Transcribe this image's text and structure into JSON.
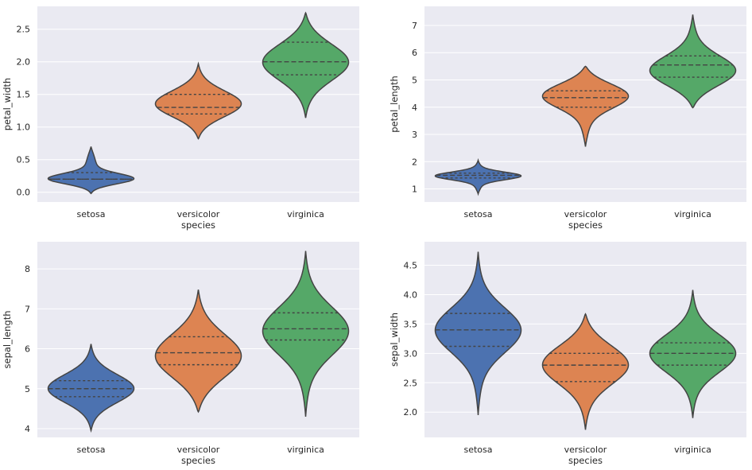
{
  "colors": {
    "setosa": "#4c72b0",
    "versicolor": "#dd8452",
    "virginica": "#55a868",
    "background": "#eaeaf2",
    "outline": "#444444"
  },
  "chart_data": [
    {
      "type": "violin",
      "inner": "quartile",
      "xlabel": "species",
      "ylabel": "petal_width",
      "categories": [
        "setosa",
        "versicolor",
        "virginica"
      ],
      "ylim": [
        -0.15,
        2.85
      ],
      "yticks": [
        0.0,
        0.5,
        1.0,
        1.5,
        2.0,
        2.5
      ],
      "ytick_labels": [
        "0.0",
        "0.5",
        "1.0",
        "1.5",
        "2.0",
        "2.5"
      ],
      "grid": true,
      "violins": [
        {
          "category": "setosa",
          "color": "#4c72b0",
          "min": -0.02,
          "max": 0.7,
          "q1": 0.2,
          "median": 0.2,
          "q3": 0.3,
          "mode": 0.2,
          "spread": 0.08
        },
        {
          "category": "versicolor",
          "color": "#dd8452",
          "min": 0.82,
          "max": 1.97,
          "q1": 1.2,
          "median": 1.3,
          "q3": 1.5,
          "mode": 1.35,
          "spread": 0.2
        },
        {
          "category": "virginica",
          "color": "#55a868",
          "min": 1.14,
          "max": 2.75,
          "q1": 1.8,
          "median": 2.0,
          "q3": 2.3,
          "mode": 2.0,
          "spread": 0.28
        }
      ]
    },
    {
      "type": "violin",
      "inner": "quartile",
      "xlabel": "species",
      "ylabel": "petal_length",
      "categories": [
        "setosa",
        "versicolor",
        "virginica"
      ],
      "ylim": [
        0.52,
        7.7
      ],
      "yticks": [
        1,
        2,
        3,
        4,
        5,
        6,
        7
      ],
      "ytick_labels": [
        "1",
        "2",
        "3",
        "4",
        "5",
        "6",
        "7"
      ],
      "grid": true,
      "violins": [
        {
          "category": "setosa",
          "color": "#4c72b0",
          "min": 0.82,
          "max": 2.05,
          "q1": 1.4,
          "median": 1.5,
          "q3": 1.58,
          "mode": 1.48,
          "spread": 0.14
        },
        {
          "category": "versicolor",
          "color": "#dd8452",
          "min": 2.55,
          "max": 5.5,
          "q1": 4.0,
          "median": 4.35,
          "q3": 4.6,
          "mode": 4.45,
          "spread": 0.45
        },
        {
          "category": "virginica",
          "color": "#55a868",
          "min": 3.98,
          "max": 7.4,
          "q1": 5.1,
          "median": 5.55,
          "q3": 5.88,
          "mode": 5.3,
          "spread": 0.55
        }
      ]
    },
    {
      "type": "violin",
      "inner": "quartile",
      "xlabel": "species",
      "ylabel": "sepal_length",
      "categories": [
        "setosa",
        "versicolor",
        "virginica"
      ],
      "ylim": [
        3.78,
        8.68
      ],
      "yticks": [
        4,
        5,
        6,
        7,
        8
      ],
      "ytick_labels": [
        "4",
        "5",
        "6",
        "7",
        "8"
      ],
      "grid": true,
      "violins": [
        {
          "category": "setosa",
          "color": "#4c72b0",
          "min": 3.95,
          "max": 6.12,
          "q1": 4.8,
          "median": 5.0,
          "q3": 5.2,
          "mode": 5.0,
          "spread": 0.35
        },
        {
          "category": "versicolor",
          "color": "#dd8452",
          "min": 4.42,
          "max": 7.48,
          "q1": 5.6,
          "median": 5.9,
          "q3": 6.3,
          "mode": 5.8,
          "spread": 0.55
        },
        {
          "category": "virginica",
          "color": "#55a868",
          "min": 4.3,
          "max": 8.45,
          "q1": 6.22,
          "median": 6.5,
          "q3": 6.9,
          "mode": 6.45,
          "spread": 0.6
        }
      ]
    },
    {
      "type": "violin",
      "inner": "quartile",
      "xlabel": "species",
      "ylabel": "sepal_width",
      "categories": [
        "setosa",
        "versicolor",
        "virginica"
      ],
      "ylim": [
        1.57,
        4.9
      ],
      "yticks": [
        2.0,
        2.5,
        3.0,
        3.5,
        4.0,
        4.5
      ],
      "ytick_labels": [
        "2.0",
        "2.5",
        "3.0",
        "3.5",
        "4.0",
        "4.5"
      ],
      "grid": true,
      "violins": [
        {
          "category": "setosa",
          "color": "#4c72b0",
          "min": 1.95,
          "max": 4.73,
          "q1": 3.12,
          "median": 3.4,
          "q3": 3.68,
          "mode": 3.4,
          "spread": 0.38
        },
        {
          "category": "versicolor",
          "color": "#dd8452",
          "min": 1.7,
          "max": 3.67,
          "q1": 2.52,
          "median": 2.8,
          "q3": 3.0,
          "mode": 2.82,
          "spread": 0.33
        },
        {
          "category": "virginica",
          "color": "#55a868",
          "min": 1.9,
          "max": 4.08,
          "q1": 2.8,
          "median": 3.0,
          "q3": 3.18,
          "mode": 3.0,
          "spread": 0.32
        }
      ]
    }
  ]
}
